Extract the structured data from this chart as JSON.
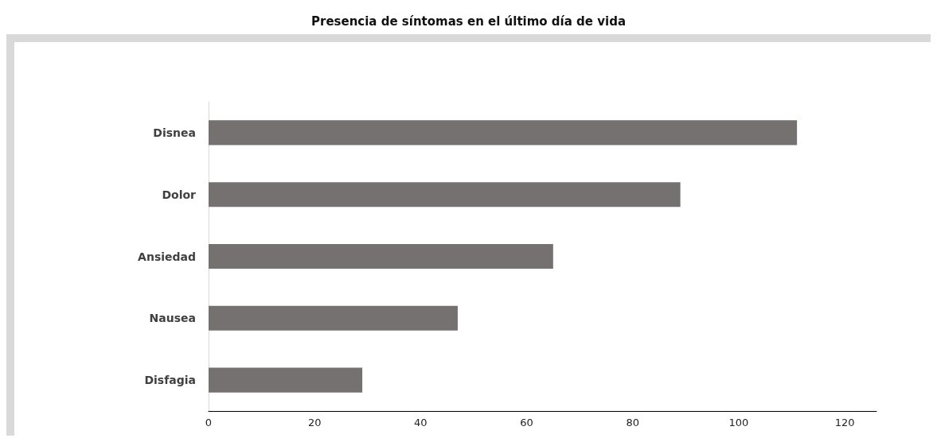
{
  "chart_data": {
    "type": "bar",
    "title": "Presencia de síntomas en el último día de vida",
    "orientation": "horizontal",
    "categories": [
      "Disnea",
      "Dolor",
      "Ansiedad",
      "Nausea",
      "Disfagia"
    ],
    "values": [
      111,
      89,
      65,
      47,
      29
    ],
    "color": "#767171",
    "xlim": [
      0,
      126
    ],
    "xticks": [
      0,
      20,
      40,
      60,
      80,
      100,
      120
    ],
    "grid": false
  }
}
